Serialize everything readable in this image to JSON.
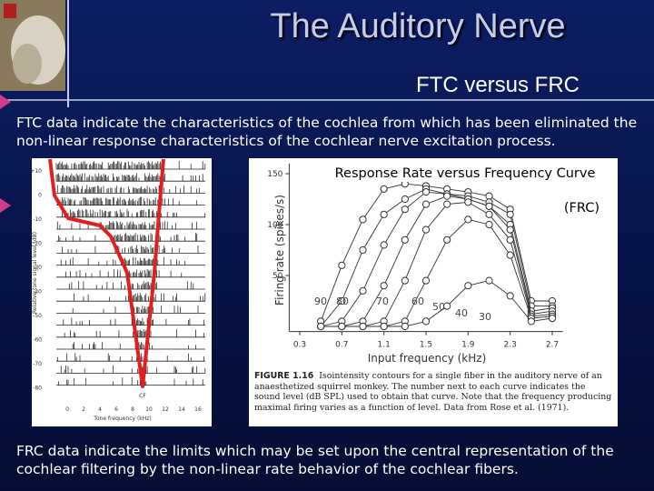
{
  "slide": {
    "title": "The Auditory Nerve",
    "subtitle": "FTC versus FRC",
    "paragraphs": [
      "FTC data indicate the characteristics of the cochlea from which has been eliminated the non-linear response characteristics of the cochlear nerve excitation process.",
      "FRC data indicate the limits which may be set upon the central representation of the cochlear filtering by the non-linear rate behavior of the cochlear fibers."
    ]
  },
  "ftc_figure": {
    "y_label": "Relative tone signal level (dB)",
    "x_label": "Tone frequency (kHz)",
    "yticks": [
      "+10",
      "0",
      "-10",
      "-20",
      "-30",
      "-40",
      "-50",
      "-60",
      "-70",
      "-80"
    ],
    "xticks": [
      "0",
      "2",
      "4",
      "6",
      "8",
      "10",
      "12",
      "14",
      "16"
    ],
    "marker": "CF"
  },
  "frc_figure": {
    "title": "Response Rate versus Frequency Curve",
    "subtitle": "(FRC)",
    "y_label": "Firing rate (spikes/s)",
    "x_label": "Input frequency (kHz)",
    "xlim": [
      0.2,
      2.8
    ],
    "ylim": [
      -5,
      160
    ],
    "xticks": [
      0.3,
      0.7,
      1.1,
      1.5,
      1.9,
      2.3,
      2.7
    ],
    "yticks": [
      50,
      100,
      150
    ],
    "x": [
      0.5,
      0.7,
      0.9,
      1.1,
      1.3,
      1.5,
      1.7,
      1.9,
      2.1,
      2.3,
      2.5,
      2.7
    ],
    "series": [
      {
        "name": "90",
        "values": [
          5,
          60,
          105,
          135,
          140,
          138,
          135,
          132,
          128,
          115,
          25,
          25
        ]
      },
      {
        "name": "80",
        "values": [
          0,
          25,
          75,
          110,
          125,
          135,
          130,
          128,
          122,
          110,
          20,
          20
        ]
      },
      {
        "name": "70",
        "values": [
          0,
          5,
          35,
          80,
          115,
          132,
          130,
          125,
          118,
          100,
          15,
          18
        ]
      },
      {
        "name": "60",
        "values": [
          0,
          0,
          5,
          40,
          85,
          120,
          128,
          125,
          118,
          95,
          12,
          15
        ]
      },
      {
        "name": "50",
        "values": [
          0,
          0,
          0,
          5,
          45,
          95,
          120,
          122,
          110,
          85,
          10,
          12
        ]
      },
      {
        "name": "40",
        "values": [
          0,
          0,
          0,
          0,
          5,
          45,
          85,
          105,
          100,
          70,
          8,
          10
        ]
      },
      {
        "name": "30",
        "values": [
          0,
          0,
          0,
          0,
          0,
          5,
          20,
          40,
          45,
          30,
          5,
          8
        ]
      }
    ],
    "caption_label": "FIGURE 1.16",
    "caption": "Isointensity contours for a single fiber in the auditory nerve of an anaesthetized squirrel monkey. The number next to each curve indicates the sound level (dB SPL) used to obtain that curve. Note that the frequency producing maximal firing varies as a function of level. Data from Rose et al. (1971)."
  }
}
